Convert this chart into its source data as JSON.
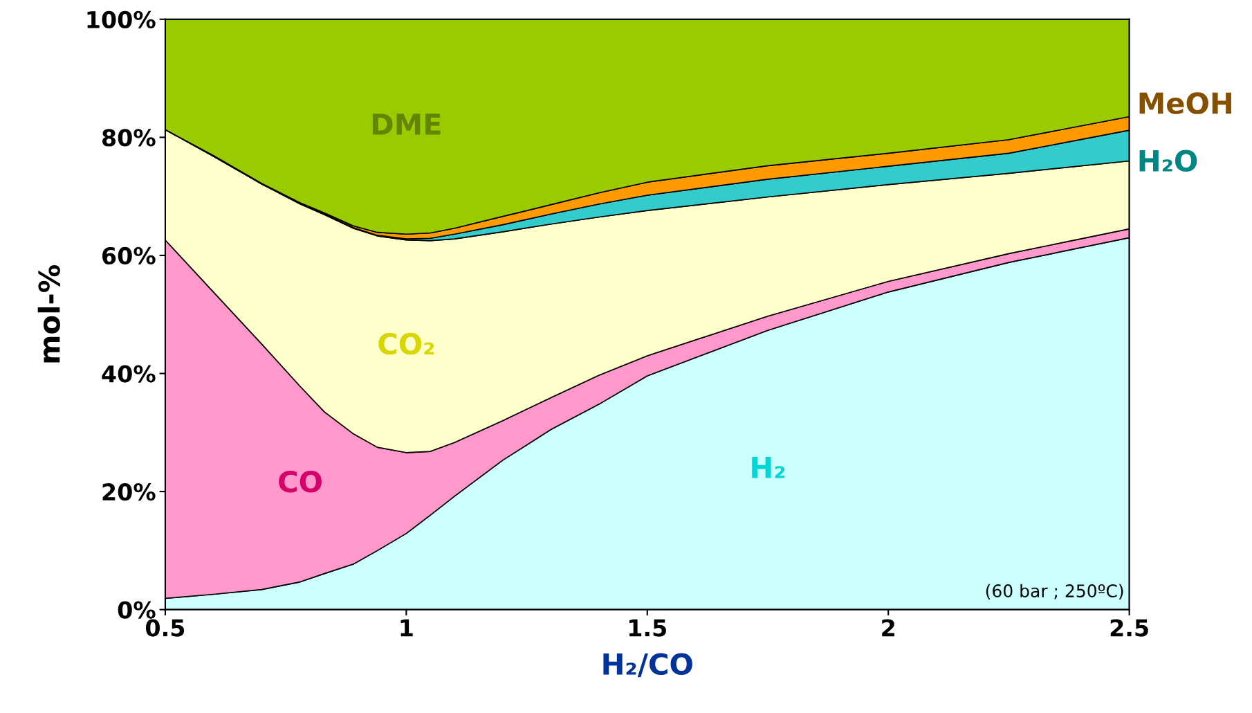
{
  "chart_data": {
    "type": "area",
    "stacked": true,
    "xlabel": "H₂/CO",
    "ylabel": "mol-%",
    "x": [
      0.5,
      0.6,
      0.7,
      0.78,
      0.83,
      0.89,
      0.94,
      1.0,
      1.05,
      1.1,
      1.2,
      1.3,
      1.4,
      1.5,
      1.75,
      2.0,
      2.25,
      2.5
    ],
    "series": [
      {
        "name": "H₂",
        "color": "#ccffff",
        "values": [
          1.9,
          2.6,
          3.4,
          4.7,
          6.1,
          7.7,
          10.0,
          12.9,
          16.0,
          19.2,
          25.3,
          30.5,
          34.8,
          39.6,
          47.3,
          53.8,
          58.8,
          63.0
        ]
      },
      {
        "name": "CO",
        "color": "#ff99cc",
        "values": [
          60.7,
          51.2,
          41.6,
          33.1,
          27.4,
          22.1,
          17.5,
          13.7,
          10.8,
          9.1,
          6.7,
          5.4,
          4.9,
          3.4,
          2.4,
          1.8,
          1.5,
          1.5
        ]
      },
      {
        "name": "CO₂",
        "color": "#ffffcc",
        "values": [
          18.7,
          23.0,
          27.1,
          30.9,
          33.4,
          34.8,
          35.8,
          36.0,
          35.7,
          34.5,
          32.0,
          29.4,
          26.8,
          24.6,
          20.2,
          16.4,
          13.6,
          11.5
        ]
      },
      {
        "name": "H₂O",
        "color": "#33cccc",
        "values": [
          0.0,
          0.0,
          0.0,
          0.1,
          0.1,
          0.1,
          0.1,
          0.2,
          0.4,
          0.8,
          1.2,
          1.7,
          2.2,
          2.6,
          3.0,
          3.1,
          3.4,
          5.2
        ]
      },
      {
        "name": "MeOH",
        "color": "#ff9900",
        "values": [
          0.0,
          0.1,
          0.1,
          0.1,
          0.2,
          0.3,
          0.5,
          0.8,
          0.9,
          1.0,
          1.4,
          1.6,
          1.9,
          2.2,
          2.3,
          2.2,
          2.3,
          2.3
        ]
      },
      {
        "name": "DME",
        "color": "#99cc00",
        "values": [
          18.7,
          23.1,
          27.8,
          31.1,
          32.8,
          35.0,
          36.1,
          36.4,
          36.2,
          35.4,
          33.4,
          31.4,
          29.4,
          27.6,
          24.8,
          22.7,
          20.4,
          16.5
        ]
      }
    ],
    "xlim": [
      0.5,
      2.5
    ],
    "xticks": [
      0.5,
      1,
      1.5,
      2,
      2.5
    ],
    "ylim": [
      0,
      100
    ],
    "yticks": [
      {
        "value": 0,
        "label": "0%"
      },
      {
        "value": 20,
        "label": "20%"
      },
      {
        "value": 40,
        "label": "40%"
      },
      {
        "value": 60,
        "label": "60%"
      },
      {
        "value": 80,
        "label": "80%"
      },
      {
        "value": 100,
        "label": "100%"
      }
    ],
    "grid": false,
    "legend": false,
    "annotations": [
      "(60 bar ; 250ºC)"
    ]
  }
}
